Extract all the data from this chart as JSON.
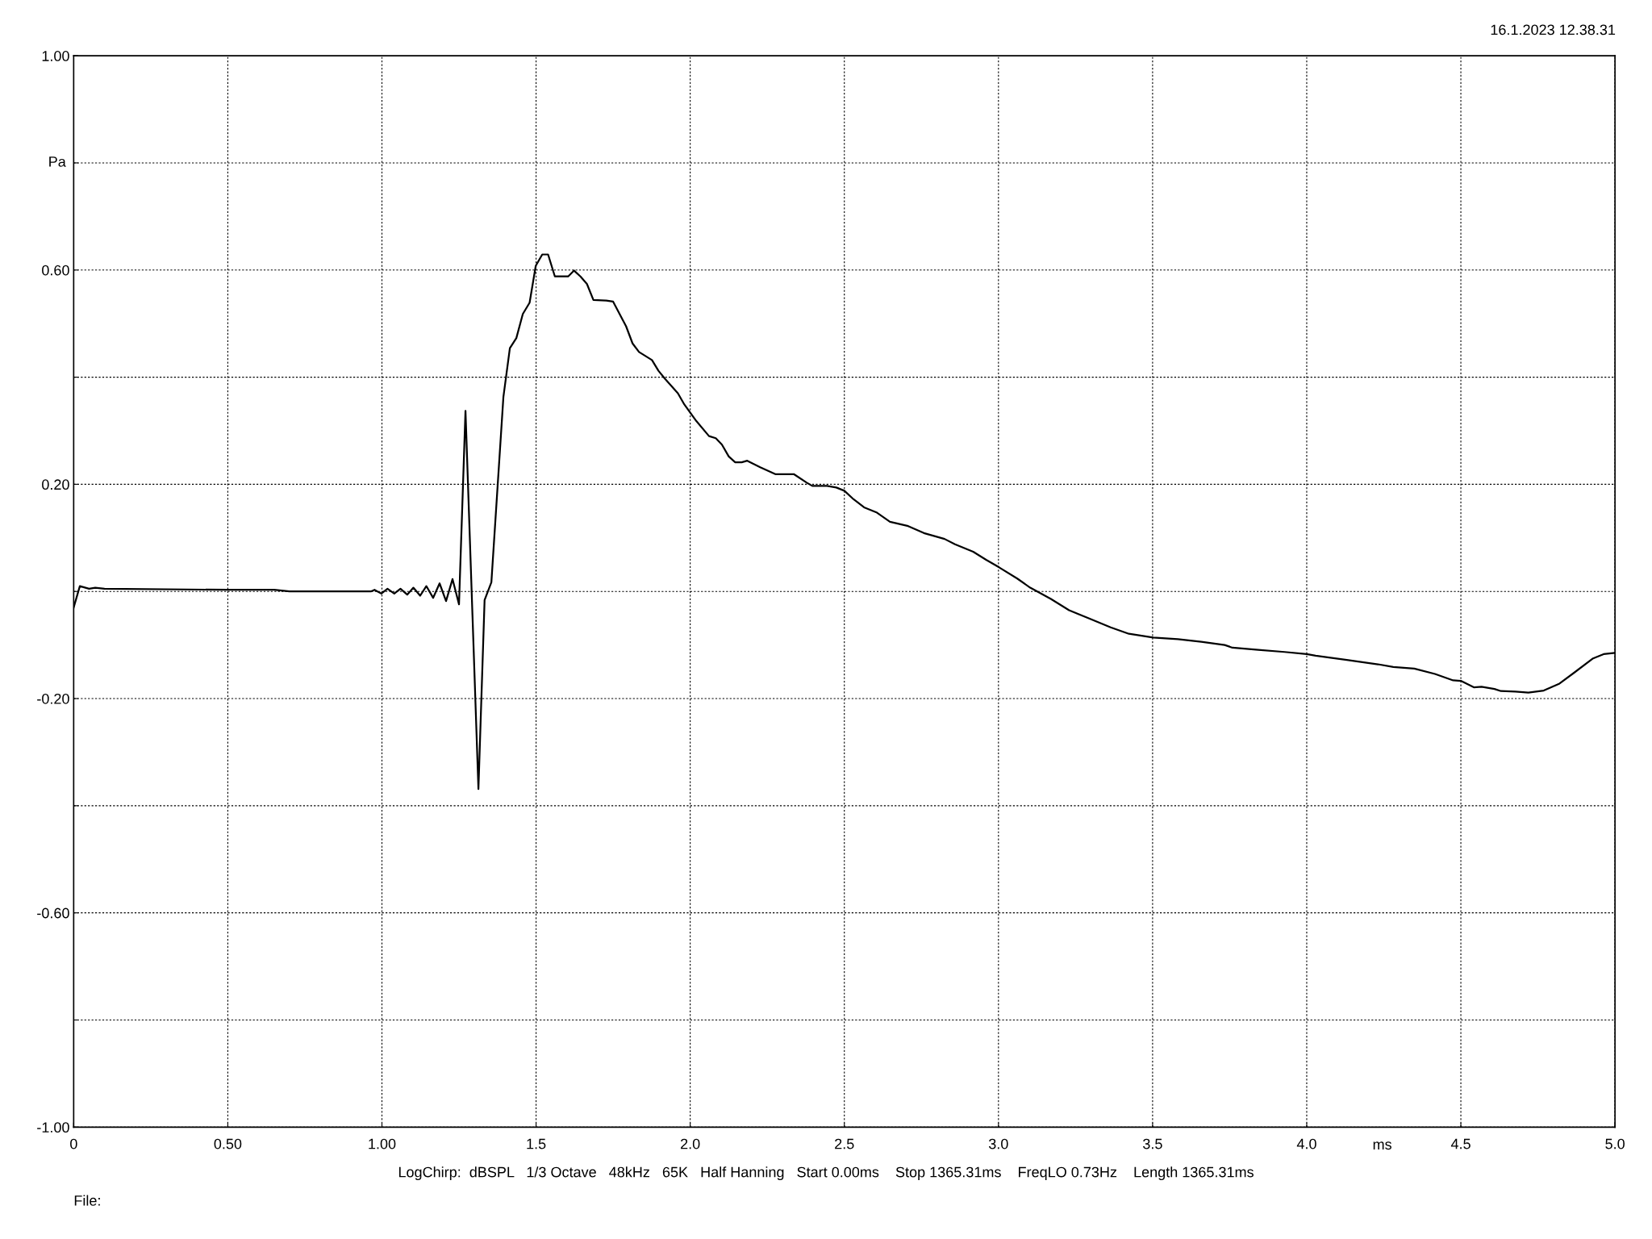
{
  "chart_data": {
    "type": "line",
    "ylabel": "Pa",
    "xlabel": "ms",
    "annotations": [
      "16.1.2023 12.38.31",
      "LogChirp:  dBSPL   1/3 Octave   48kHz   65K   Half Hanning   Start 0.00ms    Stop 1365.31ms    FreqLO 0.73Hz    Length 1365.31ms",
      "File:"
    ],
    "xlim": [
      0,
      5.0
    ],
    "ylim": [
      -1.0,
      1.0
    ],
    "xticks": [
      0,
      {
        "value": 0.5,
        "label": "0.50"
      },
      {
        "value": 1.0,
        "label": "1.00"
      },
      1.5,
      {
        "value": 2.0,
        "label": "2.0"
      },
      2.5,
      {
        "value": 3.0,
        "label": "3.0"
      },
      3.5,
      {
        "value": 4.0,
        "label": "4.0"
      },
      4.5,
      {
        "value": 5.0,
        "label": "5.0"
      }
    ],
    "yticks": [
      {
        "value": -1.0,
        "label": "-1.00"
      },
      {
        "value": -0.8,
        "label": null
      },
      {
        "value": -0.6,
        "label": "-0.60"
      },
      {
        "value": -0.4,
        "label": null
      },
      {
        "value": -0.2,
        "label": "-0.20"
      },
      {
        "value": 0.0,
        "label": null
      },
      {
        "value": 0.2,
        "label": "0.20"
      },
      {
        "value": 0.4,
        "label": null
      },
      {
        "value": 0.6,
        "label": "0.60"
      },
      {
        "value": 0.8,
        "label": null
      },
      {
        "value": 1.0,
        "label": "1.00"
      }
    ],
    "grid": true,
    "marker": "none",
    "line_style": "solid",
    "series": [
      {
        "color": "#000000",
        "x": [
          0,
          0.02,
          0.05,
          0.07,
          0.1,
          0.5,
          0.65,
          0.7,
          0.9,
          0.964,
          0.976,
          0.998,
          1.018,
          1.04,
          1.06,
          1.082,
          1.102,
          1.124,
          1.144,
          1.166,
          1.187,
          1.208,
          1.229,
          1.25,
          1.271,
          1.313,
          1.333,
          1.355,
          1.394,
          1.415,
          1.436,
          1.457,
          1.479,
          1.499,
          1.52,
          1.539,
          1.561,
          1.604,
          1.623,
          1.644,
          1.665,
          1.686,
          1.728,
          1.75,
          1.792,
          1.813,
          1.834,
          1.876,
          1.897,
          1.918,
          1.96,
          1.981,
          2.02,
          2.061,
          2.083,
          2.103,
          2.125,
          2.146,
          2.167,
          2.185,
          2.227,
          2.276,
          2.336,
          2.378,
          2.396,
          2.444,
          2.474,
          2.5,
          2.53,
          2.564,
          2.606,
          2.648,
          2.707,
          2.758,
          2.825,
          2.859,
          2.918,
          2.96,
          3.002,
          3.061,
          3.103,
          3.17,
          3.229,
          3.296,
          3.364,
          3.423,
          3.502,
          3.582,
          3.658,
          3.734,
          3.759,
          3.843,
          3.928,
          4.0,
          4.029,
          4.13,
          4.231,
          4.281,
          4.349,
          4.416,
          4.475,
          4.5,
          4.542,
          4.567,
          4.609,
          4.63,
          4.677,
          4.719,
          4.769,
          4.82,
          4.869,
          4.929,
          4.963,
          4.997
        ],
        "values": [
          -0.03,
          0.01,
          0.005,
          0.007,
          0.005,
          0.003,
          0.003,
          0.0,
          0.0,
          0.0,
          0.003,
          -0.004,
          0.005,
          -0.004,
          0.005,
          -0.006,
          0.007,
          -0.008,
          0.01,
          -0.012,
          0.015,
          -0.018,
          0.023,
          -0.024,
          0.337,
          -0.369,
          -0.016,
          0.017,
          0.363,
          0.454,
          0.473,
          0.518,
          0.539,
          0.608,
          0.629,
          0.629,
          0.588,
          0.588,
          0.599,
          0.588,
          0.574,
          0.544,
          0.543,
          0.541,
          0.495,
          0.463,
          0.447,
          0.432,
          0.412,
          0.397,
          0.37,
          0.349,
          0.318,
          0.29,
          0.286,
          0.274,
          0.252,
          0.241,
          0.241,
          0.244,
          0.232,
          0.219,
          0.219,
          0.203,
          0.197,
          0.197,
          0.194,
          0.188,
          0.172,
          0.157,
          0.147,
          0.13,
          0.122,
          0.109,
          0.098,
          0.088,
          0.074,
          0.059,
          0.045,
          0.024,
          0.007,
          -0.014,
          -0.035,
          -0.051,
          -0.067,
          -0.079,
          -0.086,
          -0.089,
          -0.094,
          -0.1,
          -0.105,
          -0.109,
          -0.113,
          -0.117,
          -0.12,
          -0.128,
          -0.136,
          -0.141,
          -0.144,
          -0.154,
          -0.166,
          -0.167,
          -0.179,
          -0.178,
          -0.182,
          -0.186,
          -0.187,
          -0.189,
          -0.185,
          -0.172,
          -0.151,
          -0.125,
          -0.117,
          -0.115
        ]
      }
    ]
  }
}
